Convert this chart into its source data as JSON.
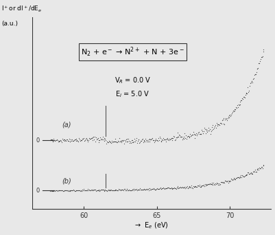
{
  "title_equation": "N$_2$ + e$^-$ → N$^{2+}$ + N + 3e$^-$",
  "vr_label": "V$_R$ = 0.0 V",
  "ei_label": "E$_i$ = 5.0 V",
  "ylabel": "I$^+$or dI$^+$/dE$_e$\n(a.u.)",
  "xlabel": "→  E$_e$ (eV)",
  "xmin": 57.5,
  "xmax": 72.5,
  "xticks": [
    60,
    65,
    70
  ],
  "label_a": "(a)",
  "label_b": "(b)",
  "bg_color": "#e8e8e8",
  "dot_color": "#333333",
  "zero_line_color": "#333333",
  "marker_line_color": "#555555",
  "seed": 42
}
